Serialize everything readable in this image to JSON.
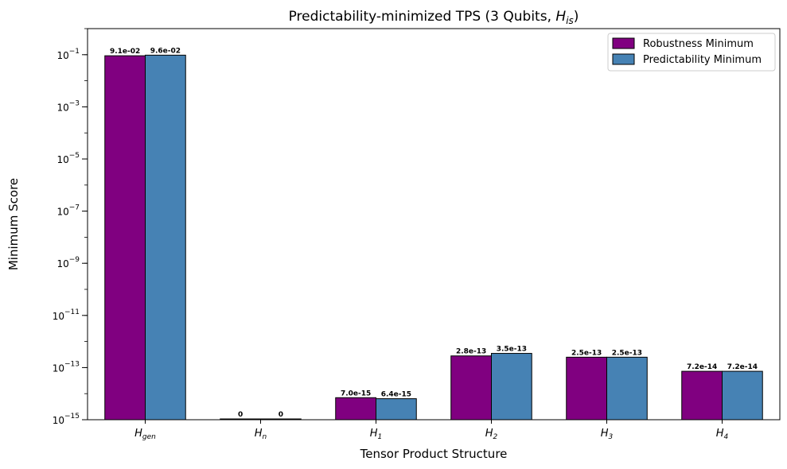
{
  "chart_data": {
    "type": "bar",
    "title": "Predictability-minimized TPS (3 Qubits, H_is)",
    "xlabel": "Tensor Product Structure",
    "ylabel": "Minimum Score",
    "yscale": "log",
    "ylim": [
      1e-15,
      1
    ],
    "yticks": [
      {
        "value": 1e-15,
        "exp": "-15"
      },
      {
        "value": 1e-13,
        "exp": "-13"
      },
      {
        "value": 1e-11,
        "exp": "-11"
      },
      {
        "value": 1e-09,
        "exp": "-9"
      },
      {
        "value": 1e-07,
        "exp": "-7"
      },
      {
        "value": 1e-05,
        "exp": "-5"
      },
      {
        "value": 0.001,
        "exp": "-3"
      },
      {
        "value": 0.1,
        "exp": "-1"
      }
    ],
    "categories": [
      {
        "base": "H",
        "sub": "gen"
      },
      {
        "base": "H",
        "sub": "n"
      },
      {
        "base": "H",
        "sub": "1"
      },
      {
        "base": "H",
        "sub": "2"
      },
      {
        "base": "H",
        "sub": "3"
      },
      {
        "base": "H",
        "sub": "4"
      }
    ],
    "series": [
      {
        "name": "Robustness Minimum",
        "color": "#800080",
        "values": [
          0.091,
          0,
          7e-15,
          2.8e-13,
          2.5e-13,
          7.2e-14
        ],
        "labels": [
          "9.1e-02",
          "0",
          "7.0e-15",
          "2.8e-13",
          "2.5e-13",
          "7.2e-14"
        ]
      },
      {
        "name": "Predictability Minimum",
        "color": "#4682B4",
        "values": [
          0.096,
          0,
          6.4e-15,
          3.5e-13,
          2.5e-13,
          7.2e-14
        ],
        "labels": [
          "9.6e-02",
          "0",
          "6.4e-15",
          "3.5e-13",
          "2.5e-13",
          "7.2e-14"
        ]
      }
    ],
    "grid": false,
    "legend_position": "top-right"
  }
}
